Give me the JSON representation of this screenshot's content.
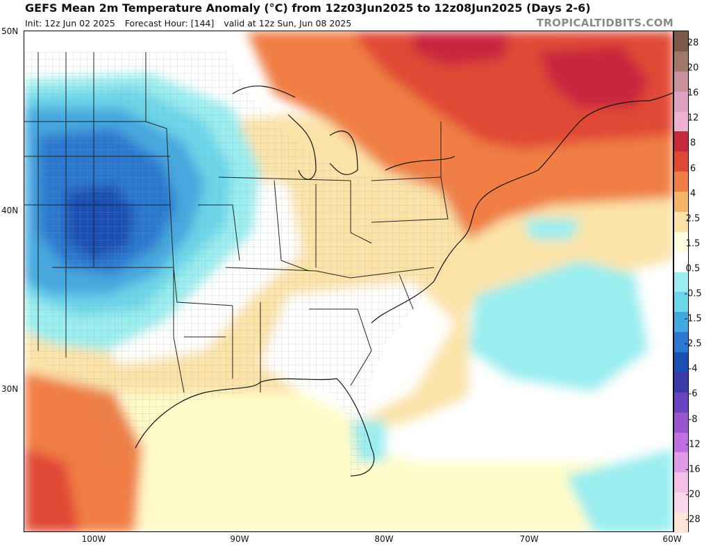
{
  "header": {
    "title": "GEFS Mean 2m Temperature Anomaly (°C) from 12z03Jun2025 to 12z08Jun2025 (Days 2-6)",
    "init": "Init: 12z Jun 02 2025",
    "forecast_hour": "Forecast Hour: [144]",
    "valid": "valid at 12z Sun, Jun 08 2025",
    "credit": "TROPICALTIDBITS.COM"
  },
  "map": {
    "lat_labels": [
      "50N",
      "40N",
      "30N"
    ],
    "lon_labels": [
      "100W",
      "90W",
      "80W",
      "70W",
      "60W"
    ],
    "regions": [
      {
        "name": "cold-core-rockies",
        "value": -6
      },
      {
        "name": "cool-plains",
        "value": -2.5
      },
      {
        "name": "warm-northeast-canada",
        "value": 4
      },
      {
        "name": "warm-south-texas",
        "value": 2.5
      },
      {
        "name": "mild-southeast",
        "value": 0.5
      },
      {
        "name": "cool-atlantic-patches",
        "value": -1.5
      }
    ]
  },
  "colorbar": {
    "labels": [
      "28",
      "20",
      "16",
      "12",
      "8",
      "6",
      "4",
      "2.5",
      "1.5",
      "0.5",
      "-0.5",
      "-1.5",
      "-2.5",
      "-4",
      "-6",
      "-8",
      "-12",
      "-16",
      "-20",
      "-28"
    ],
    "colors": [
      "#7b5a4a",
      "#a07868",
      "#c8909a",
      "#e0a0c0",
      "#f0b0d0",
      "#c8283c",
      "#e04836",
      "#f07e44",
      "#f6b468",
      "#fbe3a8",
      "#fffde0",
      "#ffffff",
      "#9aeef0",
      "#6cd6ea",
      "#44a8e0",
      "#2a78d0",
      "#1a50b4",
      "#3a3aa8",
      "#6a44c0",
      "#9a54d0",
      "#c070e0",
      "#e09ae8",
      "#f4c0e8",
      "#f8d8ea",
      "#fde6d6"
    ]
  }
}
